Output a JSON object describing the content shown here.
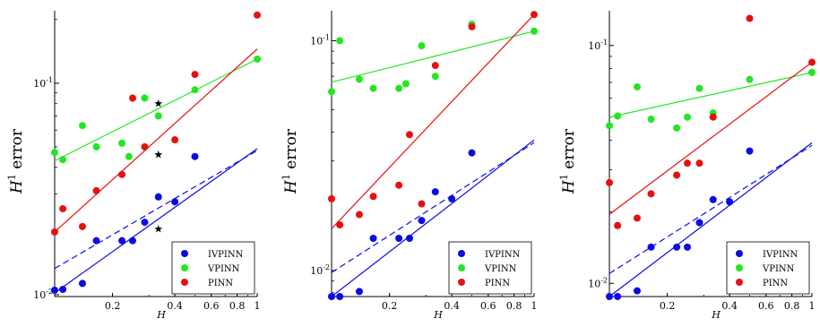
{
  "chart_data": [
    {
      "type": "scatter",
      "xlabel": "H",
      "ylabel_base": "H",
      "ylabel_sup": "1",
      "ylabel_rest": " error",
      "xscale": "log",
      "yscale": "log",
      "xlim": [
        0.105,
        1.0
      ],
      "ylim": [
        0.0098,
        0.22
      ],
      "xticks": [
        {
          "v": 0.2,
          "label": "0.2"
        },
        {
          "v": 0.4,
          "label": "0.4"
        },
        {
          "v": 0.6,
          "label": "0.6"
        },
        {
          "v": 0.8,
          "label": "0.8"
        },
        {
          "v": 1.0,
          "label": "1"
        }
      ],
      "yticks": [
        {
          "v": 0.01,
          "base": "10",
          "exp": "-2"
        },
        {
          "v": 0.1,
          "base": "10",
          "exp": "-1"
        }
      ],
      "legend_position": "bottom-right",
      "series": [
        {
          "name": "IVPINN",
          "color": "#0a0ae6",
          "points": [
            [
              0.105,
              0.0105
            ],
            [
              0.115,
              0.0106
            ],
            [
              0.143,
              0.0113
            ],
            [
              0.167,
              0.018
            ],
            [
              0.222,
              0.018
            ],
            [
              0.25,
              0.018
            ],
            [
              0.286,
              0.022
            ],
            [
              0.333,
              0.029
            ],
            [
              0.4,
              0.0275
            ],
            [
              0.5,
              0.045
            ]
          ],
          "fit": {
            "from": [
              0.105,
              0.0102
            ],
            "to": [
              1.0,
              0.049
            ]
          },
          "ref": {
            "from": [
              0.105,
              0.0133
            ],
            "to": [
              1.0,
              0.048
            ]
          }
        },
        {
          "name": "VPINN",
          "color": "#22e622",
          "points": [
            [
              0.105,
              0.047
            ],
            [
              0.115,
              0.0435
            ],
            [
              0.143,
              0.063
            ],
            [
              0.167,
              0.05
            ],
            [
              0.222,
              0.052
            ],
            [
              0.24,
              0.045
            ],
            [
              0.286,
              0.085
            ],
            [
              0.333,
              0.07
            ],
            [
              0.5,
              0.093
            ],
            [
              1.0,
              0.13
            ]
          ],
          "fit": {
            "from": [
              0.105,
              0.043
            ],
            "to": [
              1.0,
              0.13
            ]
          }
        },
        {
          "name": "PINN",
          "color": "#e61010",
          "points": [
            [
              0.105,
              0.0198
            ],
            [
              0.115,
              0.0255
            ],
            [
              0.143,
              0.021
            ],
            [
              0.167,
              0.031
            ],
            [
              0.222,
              0.037
            ],
            [
              0.25,
              0.085
            ],
            [
              0.286,
              0.05
            ],
            [
              0.4,
              0.054
            ],
            [
              0.5,
              0.11
            ],
            [
              1.0,
              0.21
            ]
          ],
          "fit": {
            "from": [
              0.105,
              0.0198
            ],
            "to": [
              1.0,
              0.145
            ]
          }
        }
      ],
      "markers": [
        {
          "type": "star",
          "points": [
            [
              0.333,
              0.08
            ],
            [
              0.333,
              0.046
            ],
            [
              0.333,
              0.0205
            ]
          ]
        }
      ]
    },
    {
      "type": "scatter",
      "xlabel": "H",
      "ylabel_base": "H",
      "ylabel_sup": "1",
      "ylabel_rest": " error",
      "xscale": "log",
      "yscale": "log",
      "xlim": [
        0.105,
        1.0
      ],
      "ylim": [
        0.0077,
        0.135
      ],
      "xticks": [
        {
          "v": 0.2,
          "label": "0.2"
        },
        {
          "v": 0.4,
          "label": "0.4"
        },
        {
          "v": 0.6,
          "label": "0.6"
        },
        {
          "v": 0.8,
          "label": "0.8"
        },
        {
          "v": 1.0,
          "label": "1"
        }
      ],
      "yticks": [
        {
          "v": 0.01,
          "base": "10",
          "exp": "-2"
        },
        {
          "v": 0.1,
          "base": "10",
          "exp": "-1"
        }
      ],
      "legend_position": "bottom-right",
      "series": [
        {
          "name": "IVPINN",
          "color": "#0a0ae6",
          "points": [
            [
              0.105,
              0.0077
            ],
            [
              0.115,
              0.0077
            ],
            [
              0.143,
              0.0081
            ],
            [
              0.167,
              0.0138
            ],
            [
              0.222,
              0.0138
            ],
            [
              0.25,
              0.0138
            ],
            [
              0.286,
              0.0165
            ],
            [
              0.333,
              0.022
            ],
            [
              0.4,
              0.0205
            ],
            [
              0.5,
              0.0325
            ]
          ],
          "fit": {
            "from": [
              0.105,
              0.0077
            ],
            "to": [
              1.0,
              0.037
            ]
          },
          "ref": {
            "from": [
              0.105,
              0.0098
            ],
            "to": [
              1.0,
              0.036
            ]
          }
        },
        {
          "name": "VPINN",
          "color": "#22e622",
          "points": [
            [
              0.105,
              0.06
            ],
            [
              0.115,
              0.1
            ],
            [
              0.143,
              0.068
            ],
            [
              0.167,
              0.062
            ],
            [
              0.222,
              0.062
            ],
            [
              0.24,
              0.065
            ],
            [
              0.286,
              0.095
            ],
            [
              0.333,
              0.07
            ],
            [
              0.5,
              0.118
            ],
            [
              1.0,
              0.11
            ]
          ],
          "fit": {
            "from": [
              0.105,
              0.066
            ],
            "to": [
              1.0,
              0.11
            ]
          }
        },
        {
          "name": "PINN",
          "color": "#e61010",
          "points": [
            [
              0.105,
              0.0205
            ],
            [
              0.115,
              0.0158
            ],
            [
              0.143,
              0.0175
            ],
            [
              0.167,
              0.021
            ],
            [
              0.222,
              0.0235
            ],
            [
              0.25,
              0.039
            ],
            [
              0.286,
              0.0195
            ],
            [
              0.333,
              0.078
            ],
            [
              0.5,
              0.115
            ],
            [
              1.0,
              0.13
            ]
          ],
          "fit": {
            "from": [
              0.105,
              0.0152
            ],
            "to": [
              1.0,
              0.13
            ]
          }
        }
      ]
    },
    {
      "type": "scatter",
      "xlabel": "H",
      "ylabel_base": "H",
      "ylabel_sup": "1",
      "ylabel_rest": " error",
      "xscale": "log",
      "yscale": "log",
      "xlim": [
        0.105,
        1.0
      ],
      "ylim": [
        0.0088,
        0.14
      ],
      "xticks": [
        {
          "v": 0.2,
          "label": "0.2"
        },
        {
          "v": 0.4,
          "label": "0.4"
        },
        {
          "v": 0.6,
          "label": "0.6"
        },
        {
          "v": 0.8,
          "label": "0.8"
        },
        {
          "v": 1.0,
          "label": "1"
        }
      ],
      "yticks": [
        {
          "v": 0.01,
          "base": "10",
          "exp": "-2"
        },
        {
          "v": 0.1,
          "base": "10",
          "exp": "-1"
        }
      ],
      "legend_position": "bottom-right",
      "series": [
        {
          "name": "IVPINN",
          "color": "#0a0ae6",
          "points": [
            [
              0.105,
              0.0088
            ],
            [
              0.115,
              0.0088
            ],
            [
              0.143,
              0.0093
            ],
            [
              0.167,
              0.0142
            ],
            [
              0.222,
              0.0142
            ],
            [
              0.25,
              0.0142
            ],
            [
              0.286,
              0.018
            ],
            [
              0.333,
              0.0225
            ],
            [
              0.4,
              0.022
            ],
            [
              0.5,
              0.036
            ]
          ],
          "fit": {
            "from": [
              0.105,
              0.0088
            ],
            "to": [
              1.0,
              0.039
            ]
          },
          "ref": {
            "from": [
              0.105,
              0.011
            ],
            "to": [
              1.0,
              0.038
            ]
          }
        },
        {
          "name": "VPINN",
          "color": "#22e622",
          "points": [
            [
              0.105,
              0.046
            ],
            [
              0.115,
              0.0505
            ],
            [
              0.143,
              0.067
            ],
            [
              0.167,
              0.049
            ],
            [
              0.222,
              0.045
            ],
            [
              0.25,
              0.05
            ],
            [
              0.286,
              0.066
            ],
            [
              0.333,
              0.052
            ],
            [
              0.5,
              0.072
            ],
            [
              1.0,
              0.077
            ]
          ],
          "fit": {
            "from": [
              0.105,
              0.05
            ],
            "to": [
              1.0,
              0.077
            ]
          }
        },
        {
          "name": "PINN",
          "color": "#e61010",
          "points": [
            [
              0.105,
              0.0265
            ],
            [
              0.115,
              0.0175
            ],
            [
              0.143,
              0.0188
            ],
            [
              0.167,
              0.0238
            ],
            [
              0.222,
              0.0285
            ],
            [
              0.25,
              0.032
            ],
            [
              0.286,
              0.032
            ],
            [
              0.333,
              0.05
            ],
            [
              0.5,
              0.13
            ],
            [
              1.0,
              0.085
            ]
          ],
          "fit": {
            "from": [
              0.105,
              0.0195
            ],
            "to": [
              1.0,
              0.085
            ]
          }
        }
      ]
    }
  ]
}
